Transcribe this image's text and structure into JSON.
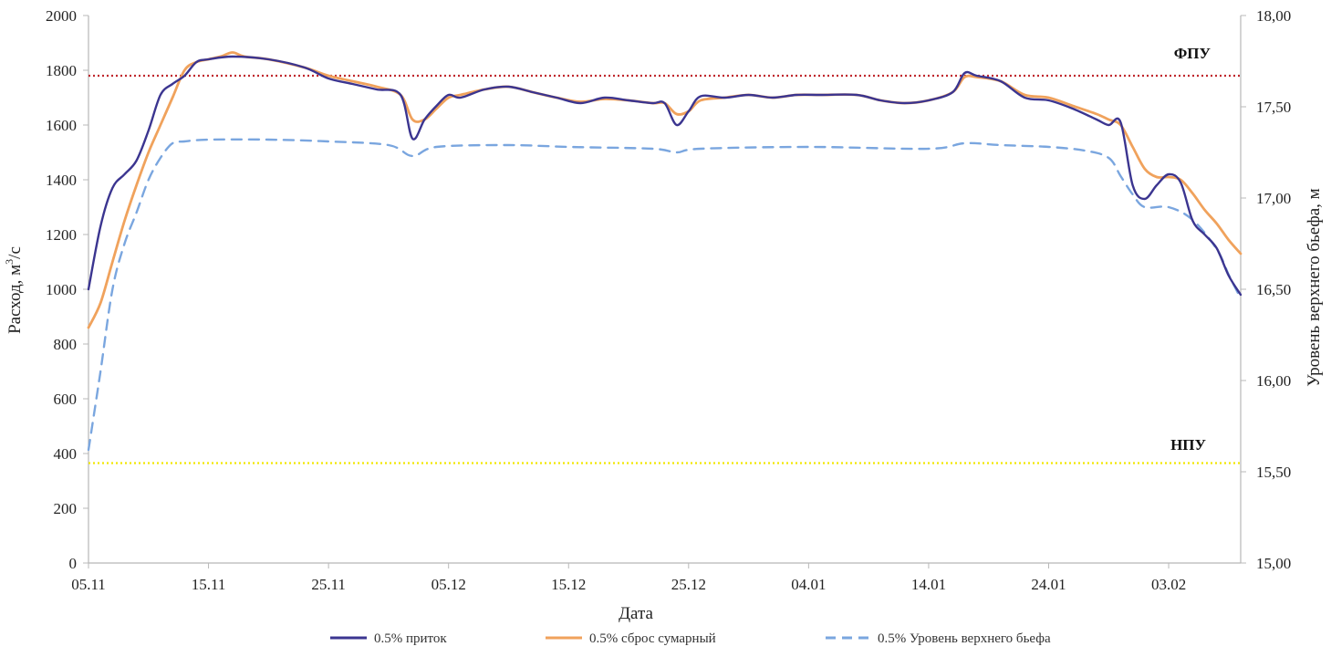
{
  "chart_data": {
    "type": "line",
    "xlabel": "Дата",
    "ylabel": "Расход, м³/с",
    "ylabel_main": "Расход, м",
    "ylabel_sup": "3",
    "ylabel_tail": "/с",
    "y2label": "Уровень верхнего бьефа, м",
    "xlim": [
      "05.11",
      "09.02"
    ],
    "ylim": [
      0,
      2000
    ],
    "y2lim": [
      15.0,
      18.0
    ],
    "x_ticks": [
      "05.11",
      "15.11",
      "25.11",
      "05.12",
      "15.12",
      "25.12",
      "04.01",
      "14.01",
      "24.01",
      "03.02"
    ],
    "y_ticks": [
      "0",
      "200",
      "400",
      "600",
      "800",
      "1000",
      "1200",
      "1400",
      "1600",
      "1800",
      "2000"
    ],
    "y2_ticks": [
      "15,00",
      "15,50",
      "16,00",
      "16,50",
      "17,00",
      "17,50",
      "18,00"
    ],
    "grid": false,
    "legend_position": "bottom",
    "reference_lines": [
      {
        "label": "ФПУ",
        "axis": "left",
        "value": 1780,
        "color": "#c0282e",
        "style": "dotted"
      },
      {
        "label": "НПУ",
        "axis": "left",
        "value": 365,
        "color": "#f2e600",
        "style": "dotted"
      }
    ],
    "series": [
      {
        "name": "0.5% приток",
        "axis": "left",
        "color": "#3b3590",
        "style": "solid",
        "points": [
          [
            "05.11",
            1000
          ],
          [
            "06.11",
            1230
          ],
          [
            "07.11",
            1370
          ],
          [
            "08.11",
            1420
          ],
          [
            "09.11",
            1470
          ],
          [
            "10.11",
            1580
          ],
          [
            "11.11",
            1710
          ],
          [
            "12.11",
            1750
          ],
          [
            "13.11",
            1780
          ],
          [
            "14.11",
            1830
          ],
          [
            "15.11",
            1840
          ],
          [
            "17.11",
            1850
          ],
          [
            "20.11",
            1840
          ],
          [
            "23.11",
            1810
          ],
          [
            "25.11",
            1770
          ],
          [
            "27.11",
            1750
          ],
          [
            "29.11",
            1730
          ],
          [
            "01.12",
            1710
          ],
          [
            "02.12",
            1550
          ],
          [
            "03.12",
            1620
          ],
          [
            "04.12",
            1670
          ],
          [
            "05.12",
            1710
          ],
          [
            "06.12",
            1700
          ],
          [
            "08.12",
            1730
          ],
          [
            "10.12",
            1740
          ],
          [
            "12.12",
            1720
          ],
          [
            "14.12",
            1700
          ],
          [
            "16.12",
            1680
          ],
          [
            "18.12",
            1700
          ],
          [
            "20.12",
            1690
          ],
          [
            "22.12",
            1680
          ],
          [
            "23.12",
            1680
          ],
          [
            "24.12",
            1600
          ],
          [
            "25.12",
            1650
          ],
          [
            "26.12",
            1705
          ],
          [
            "28.12",
            1700
          ],
          [
            "30.12",
            1710
          ],
          [
            "01.01",
            1700
          ],
          [
            "03.01",
            1710
          ],
          [
            "05.01",
            1710
          ],
          [
            "08.01",
            1710
          ],
          [
            "10.01",
            1690
          ],
          [
            "12.01",
            1680
          ],
          [
            "14.01",
            1690
          ],
          [
            "16.01",
            1720
          ],
          [
            "17.01",
            1790
          ],
          [
            "18.01",
            1780
          ],
          [
            "20.01",
            1760
          ],
          [
            "22.01",
            1700
          ],
          [
            "24.01",
            1690
          ],
          [
            "26.01",
            1660
          ],
          [
            "28.01",
            1620
          ],
          [
            "29.01",
            1600
          ],
          [
            "30.01",
            1610
          ],
          [
            "31.01",
            1380
          ],
          [
            "01.02",
            1330
          ],
          [
            "02.02",
            1380
          ],
          [
            "03.02",
            1420
          ],
          [
            "04.02",
            1390
          ],
          [
            "05.02",
            1250
          ],
          [
            "06.02",
            1200
          ],
          [
            "07.02",
            1150
          ],
          [
            "08.02",
            1050
          ],
          [
            "09.02",
            980
          ]
        ]
      },
      {
        "name": "0.5% сброс сумарный",
        "axis": "left",
        "color": "#f0a25c",
        "style": "solid",
        "points": [
          [
            "05.11",
            860
          ],
          [
            "06.11",
            950
          ],
          [
            "07.11",
            1100
          ],
          [
            "08.11",
            1250
          ],
          [
            "09.11",
            1380
          ],
          [
            "10.11",
            1500
          ],
          [
            "11.11",
            1600
          ],
          [
            "12.11",
            1700
          ],
          [
            "13.11",
            1800
          ],
          [
            "14.11",
            1830
          ],
          [
            "15.11",
            1840
          ],
          [
            "16.11",
            1850
          ],
          [
            "17.11",
            1865
          ],
          [
            "18.11",
            1850
          ],
          [
            "20.11",
            1840
          ],
          [
            "23.11",
            1810
          ],
          [
            "25.11",
            1780
          ],
          [
            "27.11",
            1760
          ],
          [
            "29.11",
            1740
          ],
          [
            "01.12",
            1710
          ],
          [
            "02.12",
            1620
          ],
          [
            "03.12",
            1620
          ],
          [
            "04.12",
            1660
          ],
          [
            "05.12",
            1700
          ],
          [
            "06.12",
            1710
          ],
          [
            "08.12",
            1730
          ],
          [
            "10.12",
            1740
          ],
          [
            "12.12",
            1720
          ],
          [
            "14.12",
            1700
          ],
          [
            "16.12",
            1685
          ],
          [
            "18.12",
            1695
          ],
          [
            "20.12",
            1690
          ],
          [
            "22.12",
            1680
          ],
          [
            "23.12",
            1680
          ],
          [
            "24.12",
            1640
          ],
          [
            "25.12",
            1650
          ],
          [
            "26.12",
            1690
          ],
          [
            "28.12",
            1700
          ],
          [
            "30.12",
            1710
          ],
          [
            "01.01",
            1700
          ],
          [
            "03.01",
            1710
          ],
          [
            "05.01",
            1710
          ],
          [
            "08.01",
            1710
          ],
          [
            "10.01",
            1690
          ],
          [
            "12.01",
            1680
          ],
          [
            "14.01",
            1690
          ],
          [
            "16.01",
            1720
          ],
          [
            "17.01",
            1775
          ],
          [
            "18.01",
            1775
          ],
          [
            "20.01",
            1760
          ],
          [
            "22.01",
            1710
          ],
          [
            "24.01",
            1700
          ],
          [
            "26.01",
            1670
          ],
          [
            "28.01",
            1640
          ],
          [
            "29.01",
            1620
          ],
          [
            "30.01",
            1600
          ],
          [
            "31.01",
            1520
          ],
          [
            "01.02",
            1440
          ],
          [
            "02.02",
            1410
          ],
          [
            "03.02",
            1410
          ],
          [
            "04.02",
            1400
          ],
          [
            "05.02",
            1350
          ],
          [
            "06.02",
            1290
          ],
          [
            "07.02",
            1240
          ],
          [
            "08.02",
            1180
          ],
          [
            "09.02",
            1130
          ]
        ]
      },
      {
        "name": "0.5% Уровень верхнего бьефа",
        "axis": "right",
        "color": "#7aa6df",
        "style": "dashed",
        "points": [
          [
            "05.11",
            15.62
          ],
          [
            "06.11",
            16.05
          ],
          [
            "07.11",
            16.5
          ],
          [
            "08.11",
            16.75
          ],
          [
            "09.11",
            16.92
          ],
          [
            "10.11",
            17.1
          ],
          [
            "11.11",
            17.22
          ],
          [
            "12.11",
            17.3
          ],
          [
            "13.11",
            17.31
          ],
          [
            "15.11",
            17.32
          ],
          [
            "20.11",
            17.32
          ],
          [
            "25.11",
            17.31
          ],
          [
            "30.11",
            17.29
          ],
          [
            "02.12",
            17.23
          ],
          [
            "04.12",
            17.28
          ],
          [
            "10.12",
            17.29
          ],
          [
            "15.12",
            17.28
          ],
          [
            "22.12",
            17.27
          ],
          [
            "24.12",
            17.25
          ],
          [
            "26.12",
            17.27
          ],
          [
            "04.01",
            17.28
          ],
          [
            "14.01",
            17.27
          ],
          [
            "17.01",
            17.3
          ],
          [
            "20.01",
            17.29
          ],
          [
            "24.01",
            17.28
          ],
          [
            "27.01",
            17.26
          ],
          [
            "29.01",
            17.22
          ],
          [
            "30.01",
            17.12
          ],
          [
            "31.01",
            17.02
          ],
          [
            "01.02",
            16.95
          ],
          [
            "03.02",
            16.95
          ],
          [
            "05.02",
            16.88
          ],
          [
            "07.02",
            16.72
          ],
          [
            "08.02",
            16.58
          ],
          [
            "09.02",
            16.45
          ]
        ]
      }
    ]
  }
}
